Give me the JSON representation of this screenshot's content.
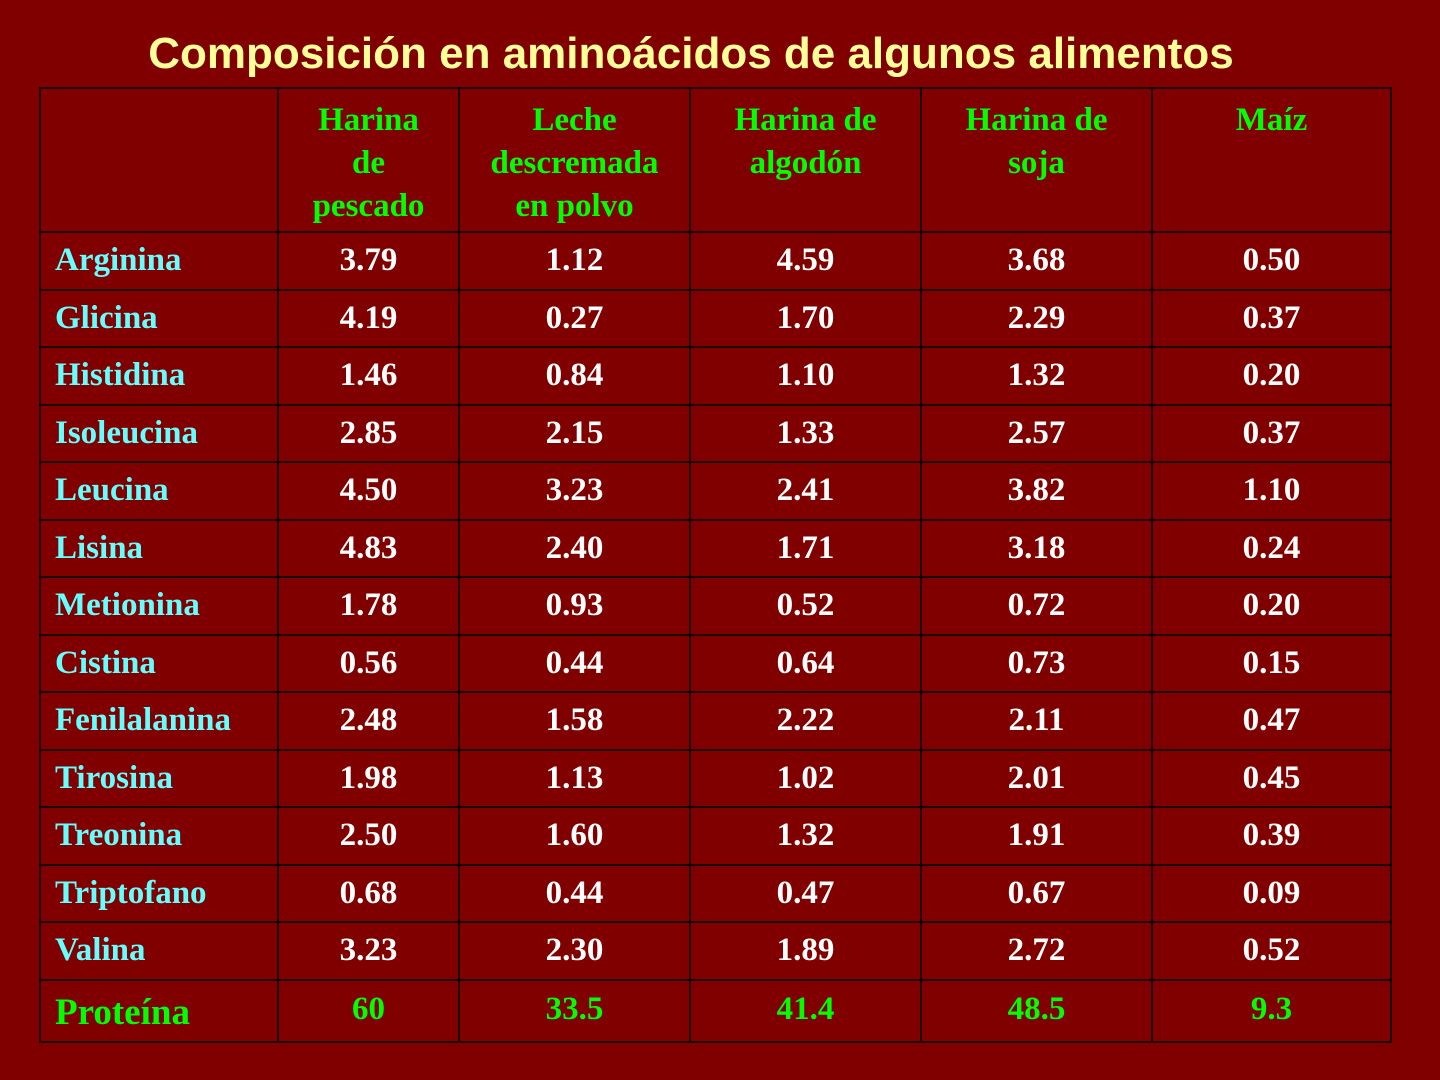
{
  "slide": {
    "title": "Composición en aminoácidos de algunos alimentos",
    "colors": {
      "background": "#800000",
      "title": "#FFFF99",
      "header_text": "#00FF00",
      "row_label_text": "#66FFFF",
      "value_text": "#FFFFFF",
      "total_text": "#00FF00",
      "grid_lines": "#1a0000"
    }
  },
  "table": {
    "corner": "",
    "columns": [
      {
        "lines": [
          "Harina",
          "de",
          "pescado"
        ]
      },
      {
        "lines": [
          "Leche",
          "descremada",
          "en polvo"
        ]
      },
      {
        "lines": [
          "Harina de",
          "algodón"
        ]
      },
      {
        "lines": [
          "Harina de",
          "soja"
        ]
      },
      {
        "lines": [
          "Maíz"
        ]
      }
    ],
    "rows": [
      {
        "label": "Arginina",
        "values": [
          "3.79",
          "1.12",
          "4.59",
          "3.68",
          "0.50"
        ]
      },
      {
        "label": "Glicina",
        "values": [
          "4.19",
          "0.27",
          "1.70",
          "2.29",
          "0.37"
        ]
      },
      {
        "label": "Histidina",
        "values": [
          "1.46",
          "0.84",
          "1.10",
          "1.32",
          "0.20"
        ]
      },
      {
        "label": "Isoleucina",
        "values": [
          "2.85",
          "2.15",
          "1.33",
          "2.57",
          "0.37"
        ]
      },
      {
        "label": "Leucina",
        "values": [
          "4.50",
          "3.23",
          "2.41",
          "3.82",
          "1.10"
        ]
      },
      {
        "label": "Lisina",
        "values": [
          "4.83",
          "2.40",
          "1.71",
          "3.18",
          "0.24"
        ]
      },
      {
        "label": "Metionina",
        "values": [
          "1.78",
          "0.93",
          "0.52",
          "0.72",
          "0.20"
        ]
      },
      {
        "label": "Cistina",
        "values": [
          "0.56",
          "0.44",
          "0.64",
          "0.73",
          "0.15"
        ]
      },
      {
        "label": "Fenilalanina",
        "values": [
          "2.48",
          "1.58",
          "2.22",
          "2.11",
          "0.47"
        ]
      },
      {
        "label": "Tirosina",
        "values": [
          "1.98",
          "1.13",
          "1.02",
          "2.01",
          "0.45"
        ]
      },
      {
        "label": "Treonina",
        "values": [
          "2.50",
          "1.60",
          "1.32",
          "1.91",
          "0.39"
        ]
      },
      {
        "label": "Triptofano",
        "values": [
          "0.68",
          "0.44",
          "0.47",
          "0.67",
          "0.09"
        ]
      },
      {
        "label": "Valina",
        "values": [
          "3.23",
          "2.30",
          "1.89",
          "2.72",
          "0.52"
        ]
      }
    ],
    "total": {
      "label": "Proteína",
      "values": [
        "60",
        "33.5",
        "41.4",
        "48.5",
        "9.3"
      ]
    }
  }
}
